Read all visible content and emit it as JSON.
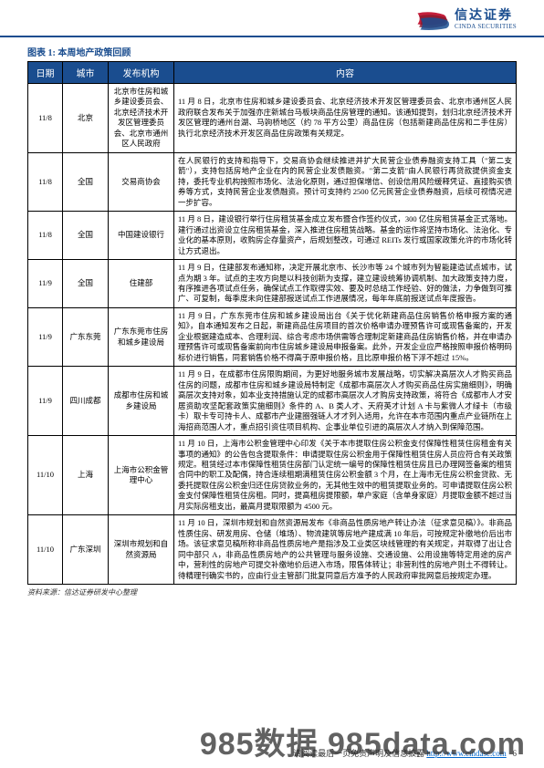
{
  "header": {
    "logo_cn": "信达证券",
    "logo_en": "CINDA SECURITIES",
    "logo_colors": {
      "stripe1": "#c41e3a",
      "stripe2": "#8b1a2e",
      "stripe3": "#1a4d8f"
    }
  },
  "chart_title": "图表 1: 本周地产政策回顾",
  "table": {
    "header_bg": "#1a4d8f",
    "header_fg": "#ffffff",
    "border_color": "#000000",
    "columns": [
      "日期",
      "城市",
      "发布机构",
      "内容"
    ],
    "rows": [
      {
        "date": "11/8",
        "city": "北京",
        "agency": "北京市住房和城乡建设委员会、北京经济技术开发区管理委员会、北京市通州区人民政府",
        "content": "11 月 8 日，北京市住房和城乡建设委员会、北京经济技术开发区管理委员会、北京市通州区人民政府联合发布关于加强亦庄新城台马板块商品住房管理的通知。该通知提到，划归北京经济技术开发区管理的通州台湖、马驹桥地区（约 78 平方公里）商品住房（包括新建商品住房和二手住房）执行北京经济技术开发区商品住房政策有关规定。"
      },
      {
        "date": "11/8",
        "city": "全国",
        "agency": "交易商协会",
        "content": "在人民银行的支持和指导下，交易商协会继续推进并扩大民营企业债券融资支持工具（\"第二支箭\"），支持包括房地产企业在内的民营企业发债融资。\"第二支箭\"由人民银行再贷款提供资金支持，委托专业机构按照市场化、法治化原则，通过担保增信、创设信用风险缓释凭证、直接购买债券等方式，支持民营企业发债融资。预计可支持约 2500 亿元民营企业债券融资，后续可视情况进一步扩容。"
      },
      {
        "date": "11/8",
        "city": "全国",
        "agency": "中国建设银行",
        "content": "11 月 8 日，建设银行举行住房租赁基金成立发布暨合作签约仪式，300 亿住房租赁基金正式落地。建行通过出资设立住房租赁基金，深入推进住房租赁战略。基金的运作将坚持市场化、法治化、专业化的基本原则，收购房企存量资产，后规划整改，可通过 REITs 发行或国家政策允许的市场化转让方式退出。"
      },
      {
        "date": "11/9",
        "city": "全国",
        "agency": "住建部",
        "content": "11 月 9 日，住建部发布通知称，决定开展北京市、长沙市等 24 个城市列为智能建造试点城市，试点为期 3 年。试点的主攻方向是以科技创新为支撑，建立建设统筹协调机制、加大政策支持力度，有序推进各项试点任务，确保试点工作取得实效、要及时总结工作经验、好的做法，力争做到可推广、可复制，每季度未向住建部报送试点工作进展情况，每年年底前报送试点年度报告。"
      },
      {
        "date": "11/9",
        "city": "广东东莞",
        "agency": "广东东莞市住房和城乡建设局",
        "content": "11 月 9 日，广东东莞市住房和城乡建设局出台《关于优化新建商品住房销售价格申报方案的通知》，自本通知发布之日起，新建商品住房项目的首次价格申请办理预售许可或现售备案的，开发企业根据建造成本、合理利润、综合考虑市场供需等合理制定新建商品住房销售价格，并在申请办理预售许可或现售备案前向市住房城乡建设局申报备案。此外，开发企业应严格按照申报价格明码标价进行销售，同套销售价格不得高于原申报价格，且比原申报价格下浮不超过 15%。"
      },
      {
        "date": "11/9",
        "city": "四川成都",
        "agency": "成都市住房和城乡建设局",
        "content": "11 月 9 日，在成都市住房限购期间，为更好地服务城市发展战略，切实解决高层次人才购买商品住房的问题，成都市住房和城乡建设局特制定《成都市高层次人才购买商品住房实施细则》，明确高层次支持对象，如本业支持措施认定的成都市高层次人才购房支持政策，将符合《成都市人才安居资助攻坚配套政策实施细则》条件的 A、B 类人才、天府英才计划 A 卡与紫微人才绿卡（市级卡）取卡专可持卡人、成都市产业建圈强链人才才列入适用，允许在本市范围内重点产业链所在上海招商范围人才，重点招引资住项目机构、企事业单位引进的高层次人才纳入到保障范围。"
      },
      {
        "date": "11/10",
        "city": "上海",
        "agency": "上海市公积金管理中心",
        "content": "11 月 10 日，上海市公积金管理中心印发《关于本市提取住房公积金支付保障性租赁住房租金有关事项的通知》的公告包含提取条件：申请提取住房公积金用于保障性租赁住房人员应符合有关政策规定。租赁经过本市保障性租赁住房部门认定统一编号的保障性租赁住房且已办理网签备案的租赁合同中的职工及配偶，持合连续租期满租赁住房公积金额 3 个月，在上海市无住房公积金贷款、无委托提取住房公积金归还住房贷款业务的，无其他生效中的租赁提取业务的。可申请提取住房公积金支付保障性租赁住房租。同时，提高租房提限额，单户家庭（含单身家庭）月提取金额不超过当月实际房租支出，最高月提取限额为 4500 元。"
      },
      {
        "date": "11/10",
        "city": "广东深圳",
        "agency": "深圳市规划和自然资源局",
        "content": "11 月 10 日，深圳市规划和自然资源局发布《非商品性质房地产转让办法（征求意见稿）》。非商品性质住房、研发用房、仓储（堆场）、物流建筑等房地产建成满 10 年后，可按规定补缴地价后出市场。该征求意见稿所称非商品性质房地产是指涉及工业类区块线管理的有关规定，并取得了出让合同中部只 A，非商品性质房地产的公共管理与服务设施、交通设施、公用设施等特定用途的房产中，营利性的房地产可提交补缴地价后进入市场，限售体转让；非营利性的房地产则土不得转让。待精理刊确实书的，应由行业主管部门批复同意后方准予的人民政府审批网意后按规定办理。"
      }
    ]
  },
  "source": "资料来源：信达证券研发中心整理",
  "footer": {
    "text_prefix": "请阅读最后一页免责声明及信息披露",
    "url": "http://www.cindasc.com",
    "page_num": "6"
  },
  "watermark": "985数据 985data.com"
}
